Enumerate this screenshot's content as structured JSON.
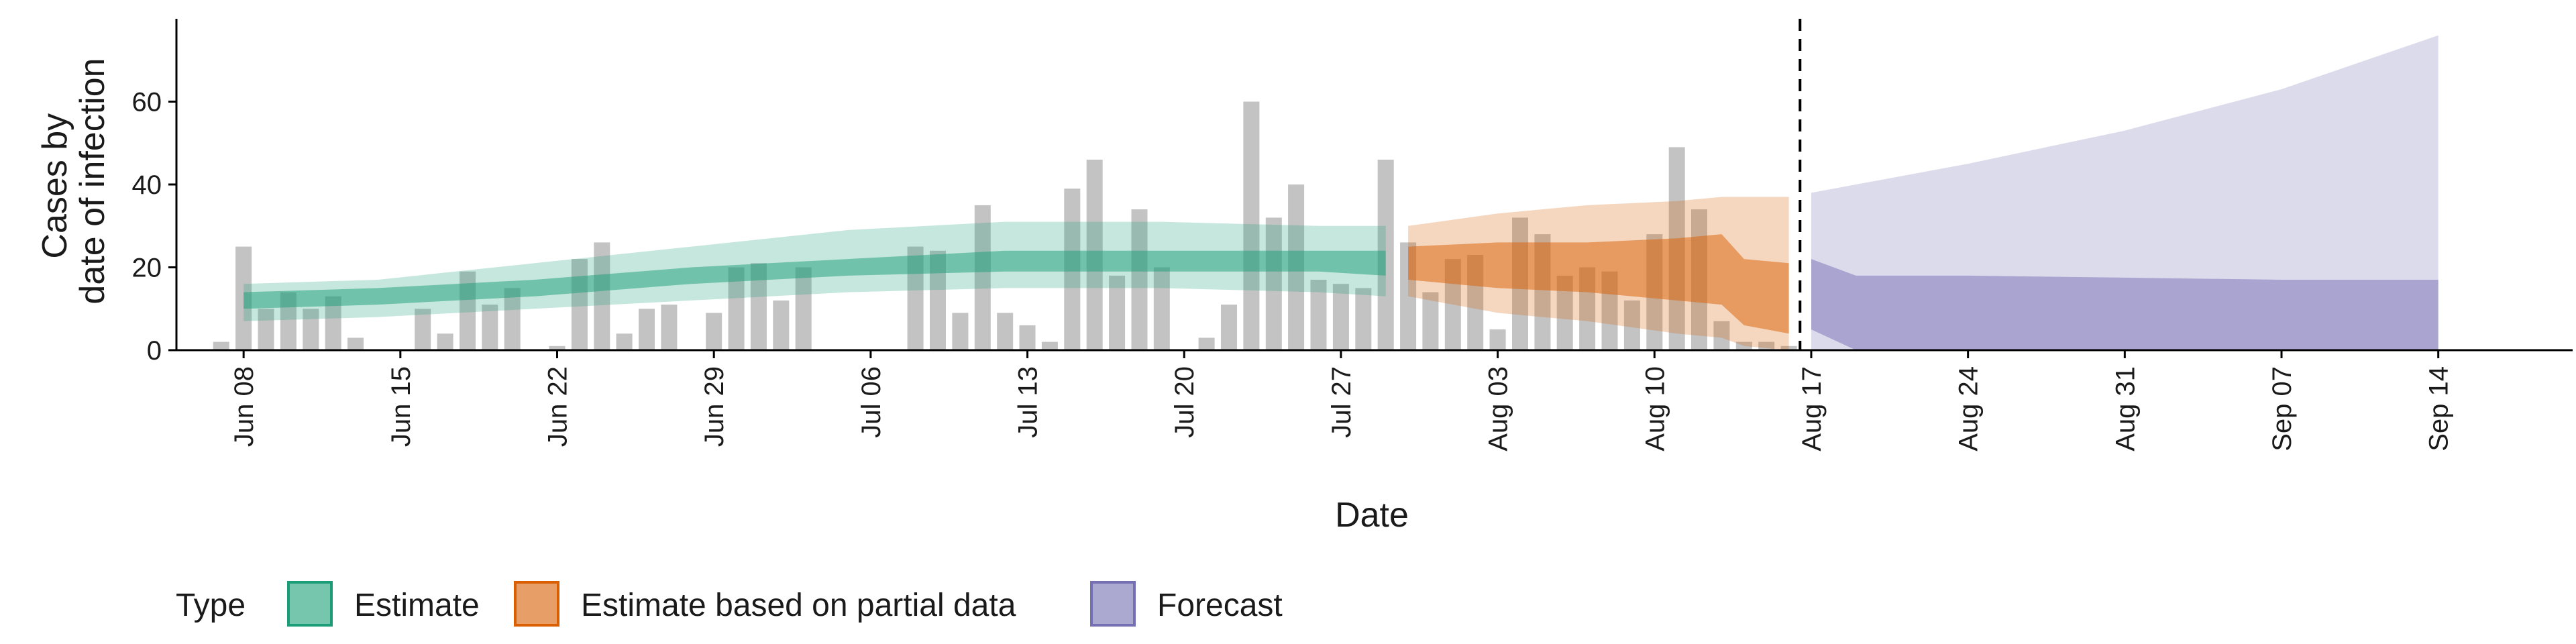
{
  "chart_data": {
    "type": "bar",
    "xlabel": "Date",
    "ylabel_lines": [
      "Cases by",
      "date of infection"
    ],
    "ylim": [
      0,
      80
    ],
    "yticks": [
      0,
      20,
      40,
      60
    ],
    "x_start": "2020-06-05",
    "x_end": "2020-09-20",
    "xticks": [
      {
        "date": "2020-06-08",
        "label": "Jun 08"
      },
      {
        "date": "2020-06-15",
        "label": "Jun 15"
      },
      {
        "date": "2020-06-22",
        "label": "Jun 22"
      },
      {
        "date": "2020-06-29",
        "label": "Jun 29"
      },
      {
        "date": "2020-07-06",
        "label": "Jul 06"
      },
      {
        "date": "2020-07-13",
        "label": "Jul 13"
      },
      {
        "date": "2020-07-20",
        "label": "Jul 20"
      },
      {
        "date": "2020-07-27",
        "label": "Jul 27"
      },
      {
        "date": "2020-08-03",
        "label": "Aug 03"
      },
      {
        "date": "2020-08-10",
        "label": "Aug 10"
      },
      {
        "date": "2020-08-17",
        "label": "Aug 17"
      },
      {
        "date": "2020-08-24",
        "label": "Aug 24"
      },
      {
        "date": "2020-08-31",
        "label": "Aug 31"
      },
      {
        "date": "2020-09-07",
        "label": "Sep 07"
      },
      {
        "date": "2020-09-14",
        "label": "Sep 14"
      }
    ],
    "vline_date": "2020-08-16",
    "reported_cases": {
      "first_date": "2020-06-07",
      "values": [
        2,
        25,
        10,
        14,
        10,
        13,
        3,
        0,
        0,
        10,
        4,
        19,
        11,
        15,
        0,
        1,
        22,
        26,
        4,
        10,
        11,
        0,
        9,
        20,
        21,
        12,
        20,
        0,
        0,
        0,
        0,
        25,
        24,
        9,
        35,
        9,
        6,
        2,
        39,
        46,
        18,
        34,
        20,
        0,
        3,
        11,
        60,
        32,
        40,
        17,
        16,
        15,
        46,
        26,
        14,
        22,
        23,
        5,
        32,
        28,
        18,
        20,
        19,
        12,
        28,
        49,
        34,
        7,
        2,
        2,
        1
      ],
      "color": "#bebebe"
    },
    "series": [
      {
        "name": "Estimate",
        "color": "#1b9e77",
        "dates": [
          "2020-06-08",
          "2020-06-14",
          "2020-06-21",
          "2020-06-28",
          "2020-07-05",
          "2020-07-12",
          "2020-07-19",
          "2020-07-26",
          "2020-07-29"
        ],
        "outer_lower": [
          7,
          8,
          10,
          12,
          14,
          15,
          15,
          14,
          13
        ],
        "outer_upper": [
          16,
          17,
          21,
          25,
          29,
          31,
          31,
          30,
          30
        ],
        "inner_lower": [
          10,
          11,
          13,
          16,
          18,
          19,
          19,
          19,
          18
        ],
        "inner_upper": [
          14,
          15,
          17,
          20,
          22,
          24,
          24,
          24,
          24
        ]
      },
      {
        "name": "Estimate based on partial data",
        "color": "#d95f02",
        "dates": [
          "2020-07-30",
          "2020-08-03",
          "2020-08-07",
          "2020-08-11",
          "2020-08-13",
          "2020-08-14",
          "2020-08-16"
        ],
        "outer_lower": [
          13,
          9,
          7,
          4,
          3,
          1,
          0
        ],
        "outer_upper": [
          30,
          33,
          35,
          36,
          37,
          37,
          37
        ],
        "inner_lower": [
          17,
          15,
          14,
          12,
          11,
          6,
          4
        ],
        "inner_upper": [
          25,
          26,
          26,
          27,
          28,
          22,
          21
        ]
      },
      {
        "name": "Forecast",
        "color": "#7570b3",
        "dates": [
          "2020-08-17",
          "2020-08-19",
          "2020-08-24",
          "2020-08-31",
          "2020-09-07",
          "2020-09-14"
        ],
        "outer_lower": [
          0,
          0,
          0,
          0,
          0,
          0
        ],
        "outer_upper": [
          38,
          40,
          45,
          53,
          63,
          76
        ],
        "inner_lower": [
          5,
          0,
          0,
          0,
          0,
          0
        ],
        "inner_upper": [
          22,
          18,
          18,
          17.5,
          17,
          17
        ]
      }
    ],
    "legend": {
      "title": "Type",
      "position": "bottom",
      "items": [
        "Estimate",
        "Estimate based on partial data",
        "Forecast"
      ]
    }
  }
}
